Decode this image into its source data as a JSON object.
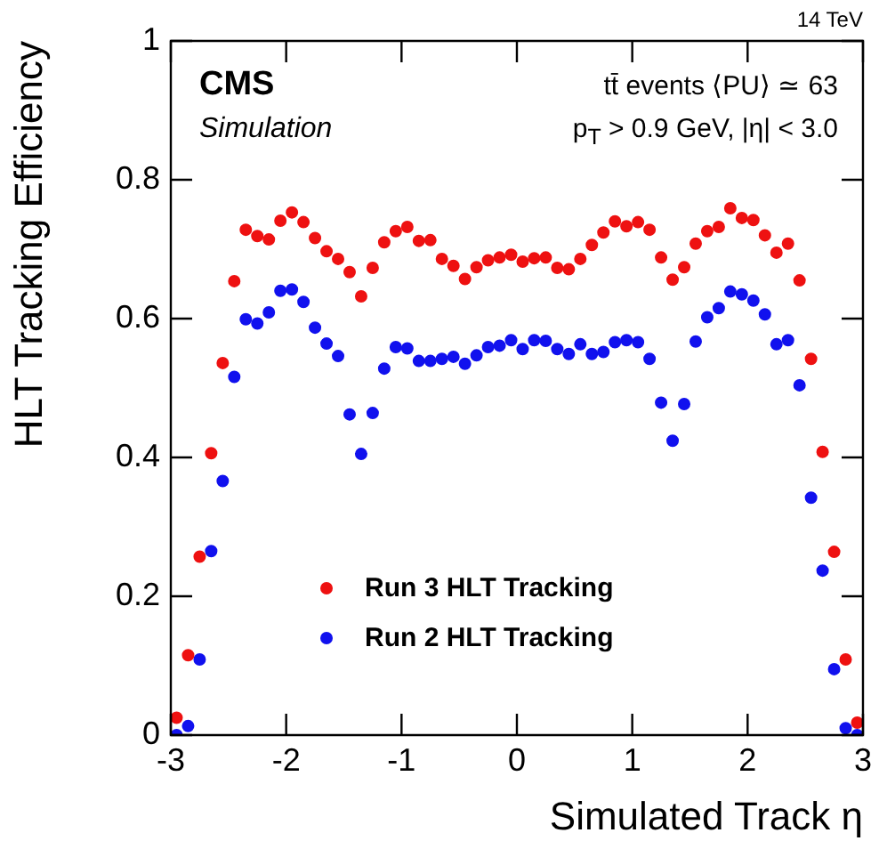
{
  "chart_data": {
    "type": "scatter",
    "xlabel": "Simulated Track η",
    "ylabel": "HLT Tracking Efficiency",
    "x": [
      -2.95,
      -2.85,
      -2.75,
      -2.65,
      -2.55,
      -2.45,
      -2.35,
      -2.25,
      -2.15,
      -2.05,
      -1.95,
      -1.85,
      -1.75,
      -1.65,
      -1.55,
      -1.45,
      -1.35,
      -1.25,
      -1.15,
      -1.05,
      -0.95,
      -0.85,
      -0.75,
      -0.65,
      -0.55,
      -0.45,
      -0.35,
      -0.25,
      -0.15,
      -0.05,
      0.05,
      0.15,
      0.25,
      0.35,
      0.45,
      0.55,
      0.65,
      0.75,
      0.85,
      0.95,
      1.05,
      1.15,
      1.25,
      1.35,
      1.45,
      1.55,
      1.65,
      1.75,
      1.85,
      1.95,
      2.05,
      2.15,
      2.25,
      2.35,
      2.45,
      2.55,
      2.65,
      2.75,
      2.85,
      2.95
    ],
    "series": [
      {
        "name": "Run 3 HLT Tracking",
        "color": "#ee1111",
        "values": [
          0.025,
          0.115,
          0.257,
          0.406,
          0.536,
          0.654,
          0.728,
          0.719,
          0.714,
          0.741,
          0.753,
          0.739,
          0.716,
          0.697,
          0.686,
          0.667,
          0.632,
          0.673,
          0.71,
          0.726,
          0.732,
          0.712,
          0.713,
          0.686,
          0.676,
          0.657,
          0.674,
          0.684,
          0.688,
          0.692,
          0.682,
          0.687,
          0.688,
          0.673,
          0.671,
          0.686,
          0.706,
          0.724,
          0.74,
          0.733,
          0.739,
          0.728,
          0.688,
          0.656,
          0.674,
          0.708,
          0.726,
          0.732,
          0.759,
          0.745,
          0.742,
          0.72,
          0.695,
          0.708,
          0.655,
          0.542,
          0.408,
          0.264,
          0.109,
          0.018
        ]
      },
      {
        "name": "Run 2 HLT Tracking",
        "color": "#1111ee",
        "values": [
          0.0,
          0.013,
          0.109,
          0.265,
          0.366,
          0.516,
          0.599,
          0.593,
          0.609,
          0.64,
          0.642,
          0.624,
          0.587,
          0.564,
          0.546,
          0.462,
          0.405,
          0.464,
          0.528,
          0.559,
          0.557,
          0.539,
          0.539,
          0.542,
          0.545,
          0.535,
          0.547,
          0.559,
          0.561,
          0.569,
          0.556,
          0.569,
          0.568,
          0.556,
          0.549,
          0.563,
          0.549,
          0.552,
          0.566,
          0.569,
          0.566,
          0.542,
          0.479,
          0.424,
          0.477,
          0.567,
          0.602,
          0.615,
          0.639,
          0.635,
          0.626,
          0.606,
          0.563,
          0.569,
          0.504,
          0.342,
          0.237,
          0.095,
          0.01,
          0.0
        ]
      }
    ],
    "xlim": [
      -3,
      3
    ],
    "xticks": [
      -3,
      -2,
      -1,
      0,
      1,
      2,
      3
    ],
    "ylim": [
      0,
      1
    ],
    "yticks": [
      0,
      0.2,
      0.4,
      0.6,
      0.8,
      1
    ],
    "grid": false,
    "legend": "bottom",
    "marker": "circle",
    "annotations": [
      "CMS",
      "Simulation",
      "tt̄ events  ⟨PU⟩ ≃ 63",
      "p$_{T}$ > 0.9 GeV, |η| < 3.0",
      "14 TeV"
    ]
  }
}
